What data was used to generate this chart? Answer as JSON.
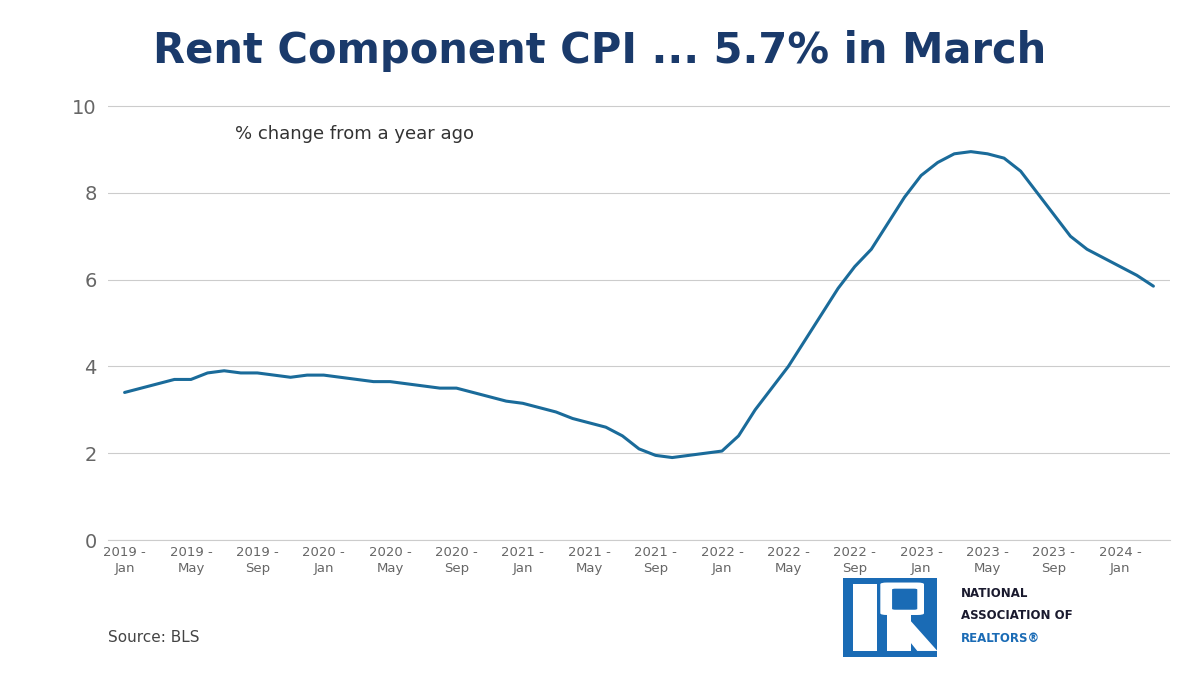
{
  "title": "Rent Component CPI ... 5.7% in March",
  "annotation": "% change from a year ago",
  "source_text": "Source: BLS",
  "line_color": "#1a6b9a",
  "line_width": 2.2,
  "background_color": "#ffffff",
  "ylim": [
    0,
    10.5
  ],
  "yticks": [
    0,
    2,
    4,
    6,
    8,
    10
  ],
  "tick_labels": [
    "2019 -\nJan",
    "2019 -\nMay",
    "2019 -\nSep",
    "2020 -\nJan",
    "2020 -\nMay",
    "2020 -\nSep",
    "2021 -\nJan",
    "2021 -\nMay",
    "2021 -\nSep",
    "2022 -\nJan",
    "2022 -\nMay",
    "2022 -\nSep",
    "2023 -\nJan",
    "2023 -\nMay",
    "2023 -\nSep",
    "2024 -\nJan"
  ],
  "title_color": "#1a3a6b",
  "title_fontsize": 30,
  "annotation_fontsize": 13,
  "axis_label_color": "#666666",
  "grid_color": "#cccccc",
  "nar_blue": "#1a6bb5",
  "nar_text_dark": "#1a1a2e",
  "nar_text_blue": "#1a6bb5"
}
